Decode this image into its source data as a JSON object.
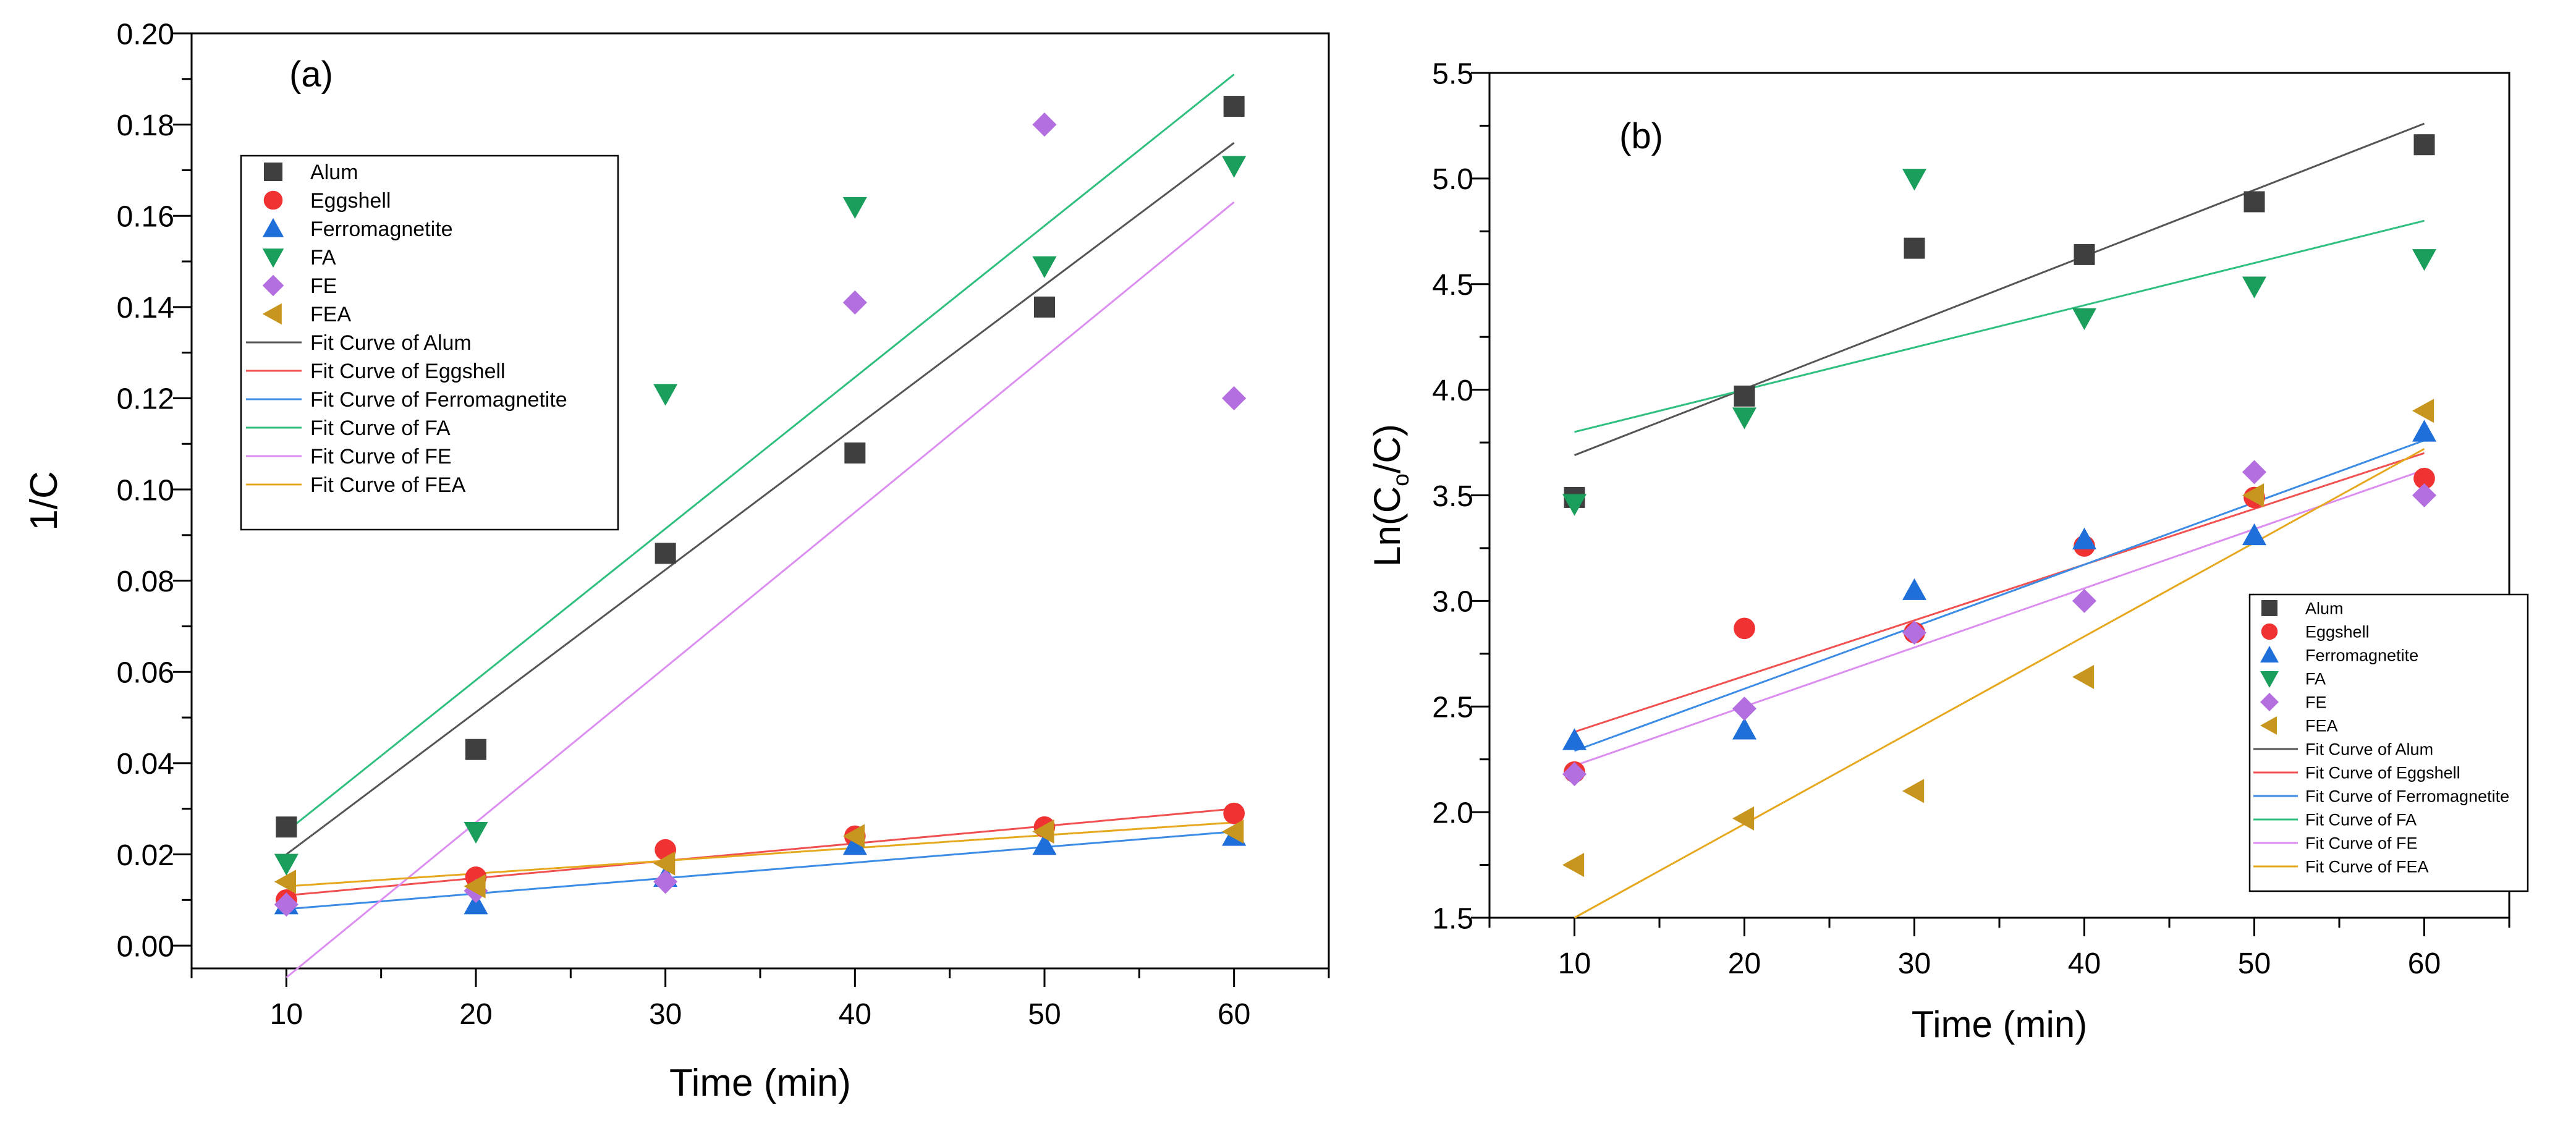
{
  "chart_data": [
    {
      "panel_label": "(a)",
      "type": "scatter",
      "xlabel": "Time (min)",
      "ylabel": "1/C",
      "xlim": [
        5,
        65
      ],
      "ylim": [
        -0.005,
        0.2
      ],
      "xticks": [
        "10",
        "20",
        "30",
        "40",
        "50",
        "60"
      ],
      "yticks": [
        "0.00",
        "0.02",
        "0.04",
        "0.06",
        "0.08",
        "0.10",
        "0.12",
        "0.14",
        "0.16",
        "0.18",
        "0.20"
      ],
      "x": [
        10,
        20,
        30,
        40,
        50,
        60
      ],
      "series": [
        {
          "name": "Alum",
          "marker": "square",
          "color": "#3f3f3f",
          "values": [
            0.026,
            0.043,
            0.086,
            0.108,
            0.14,
            0.184
          ]
        },
        {
          "name": "Eggshell",
          "marker": "circle",
          "color": "#f03232",
          "values": [
            0.01,
            0.015,
            0.021,
            0.024,
            0.026,
            0.029
          ]
        },
        {
          "name": "Ferromagnetite",
          "marker": "triangle-up",
          "color": "#1e6fd9",
          "values": [
            0.009,
            0.009,
            0.015,
            0.022,
            0.022,
            0.024
          ]
        },
        {
          "name": "FA",
          "marker": "triangle-down",
          "color": "#1a9e5c",
          "values": [
            0.018,
            0.025,
            0.121,
            0.162,
            0.149,
            0.171
          ]
        },
        {
          "name": "FE",
          "marker": "diamond",
          "color": "#b36ee0",
          "values": [
            0.009,
            0.012,
            0.014,
            0.141,
            0.18,
            0.12
          ]
        },
        {
          "name": "FEA",
          "marker": "triangle-left",
          "color": "#c8961e",
          "values": [
            0.014,
            0.013,
            0.018,
            0.024,
            0.025,
            0.025
          ]
        }
      ],
      "fits": [
        {
          "name": "Fit Curve of Alum",
          "color": "#555555",
          "y_at_10": 0.02,
          "y_at_60": 0.176
        },
        {
          "name": "Fit Curve of Eggshell",
          "color": "#f05050",
          "y_at_10": 0.011,
          "y_at_60": 0.03
        },
        {
          "name": "Fit Curve of Ferromagnetite",
          "color": "#3c8ce6",
          "y_at_10": 0.008,
          "y_at_60": 0.025
        },
        {
          "name": "Fit Curve of FA",
          "color": "#2fbf7f",
          "y_at_10": 0.025,
          "y_at_60": 0.191
        },
        {
          "name": "Fit Curve of FE",
          "color": "#dc8ef0",
          "y_at_10": -0.007,
          "y_at_60": 0.163
        },
        {
          "name": "Fit Curve of FEA",
          "color": "#e6a81e",
          "y_at_10": 0.013,
          "y_at_60": 0.027
        }
      ],
      "legend": [
        "Alum",
        "Eggshell",
        "Ferromagnetite",
        "FA",
        "FE",
        "FEA",
        "Fit Curve of Alum",
        "Fit Curve of Eggshell",
        "Fit Curve of Ferromagnetite",
        "Fit Curve of FA",
        "Fit Curve of FE",
        "Fit Curve of FEA"
      ],
      "legend_placement": "upper-left"
    },
    {
      "panel_label": "(b)",
      "type": "scatter",
      "xlabel": "Time (min)",
      "ylabel": "Ln(C0/C)",
      "ylabel_main": "Ln(C",
      "ylabel_sub": "o",
      "ylabel_tail": "/C)",
      "xlim": [
        5,
        65
      ],
      "ylim": [
        1.5,
        5.5
      ],
      "xticks": [
        "10",
        "20",
        "30",
        "40",
        "50",
        "60"
      ],
      "yticks": [
        "1.5",
        "2.0",
        "2.5",
        "3.0",
        "3.5",
        "4.0",
        "4.5",
        "5.0",
        "5.5"
      ],
      "x": [
        10,
        20,
        30,
        40,
        50,
        60
      ],
      "series": [
        {
          "name": "Alum",
          "marker": "square",
          "color": "#3f3f3f",
          "values": [
            3.49,
            3.97,
            4.67,
            4.64,
            4.89,
            5.16
          ]
        },
        {
          "name": "Eggshell",
          "marker": "circle",
          "color": "#f03232",
          "values": [
            2.19,
            2.87,
            2.85,
            3.26,
            3.49,
            3.58
          ]
        },
        {
          "name": "Ferromagnetite",
          "marker": "triangle-up",
          "color": "#1e6fd9",
          "values": [
            2.34,
            2.39,
            3.05,
            3.29,
            3.31,
            3.8
          ]
        },
        {
          "name": "FA",
          "marker": "triangle-down",
          "color": "#1a9e5c",
          "values": [
            3.46,
            3.87,
            5.0,
            4.34,
            4.49,
            4.62
          ]
        },
        {
          "name": "FE",
          "marker": "diamond",
          "color": "#b36ee0",
          "values": [
            2.18,
            2.49,
            2.85,
            3.0,
            3.61,
            3.5
          ]
        },
        {
          "name": "FEA",
          "marker": "triangle-left",
          "color": "#c8961e",
          "values": [
            1.75,
            1.97,
            2.1,
            2.64,
            3.5,
            3.9
          ]
        }
      ],
      "fits": [
        {
          "name": "Fit Curve of Alum",
          "color": "#555555",
          "y_at_10": 3.69,
          "y_at_60": 5.26
        },
        {
          "name": "Fit Curve of Eggshell",
          "color": "#f05050",
          "y_at_10": 2.38,
          "y_at_60": 3.7
        },
        {
          "name": "Fit Curve of Ferromagnetite",
          "color": "#3c8ce6",
          "y_at_10": 2.29,
          "y_at_60": 3.76
        },
        {
          "name": "Fit Curve of FA",
          "color": "#2fbf7f",
          "y_at_10": 3.8,
          "y_at_60": 4.8
        },
        {
          "name": "Fit Curve of FE",
          "color": "#dc8ef0",
          "y_at_10": 2.22,
          "y_at_60": 3.62
        },
        {
          "name": "Fit Curve of FEA",
          "color": "#e6a81e",
          "y_at_10": 1.5,
          "y_at_60": 3.72
        }
      ],
      "legend": [
        "Alum",
        "Eggshell",
        "Ferromagnetite",
        "FA",
        "FE",
        "FEA",
        "Fit Curve of Alum",
        "Fit Curve of Eggshell",
        "Fit Curve of Ferromagnetite",
        "Fit Curve of FA",
        "Fit Curve of FE",
        "Fit Curve of FEA"
      ],
      "legend_placement": "lower-right"
    }
  ]
}
